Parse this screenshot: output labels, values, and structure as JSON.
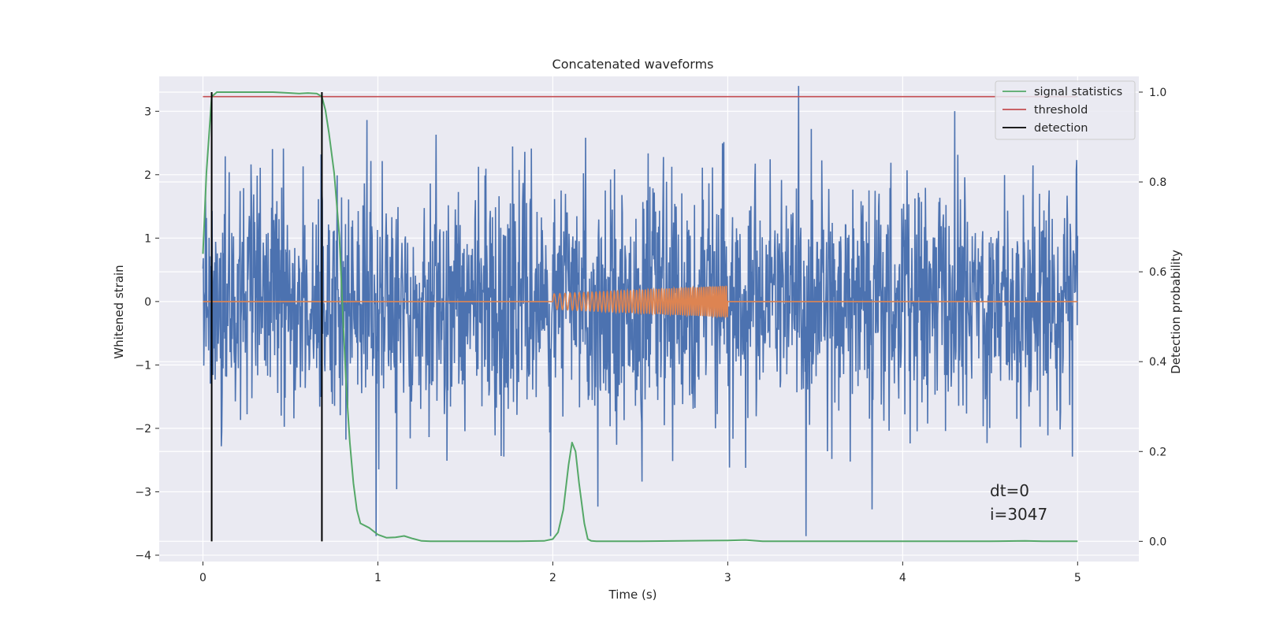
{
  "chart_data": {
    "type": "line",
    "title": "Concatenated waveforms",
    "xlabel": "Time (s)",
    "ylabel": "Whitened strain",
    "y2label": "Detection probability",
    "xlim": [
      -0.25,
      5.35
    ],
    "ylim": [
      -4.1,
      3.55
    ],
    "y2lim": [
      -0.045,
      1.035
    ],
    "x_ticks": [
      0,
      1,
      2,
      3,
      4,
      5
    ],
    "y_ticks": [
      -4,
      -3,
      -2,
      -1,
      0,
      1,
      2,
      3
    ],
    "y_tick_labels": [
      "−4",
      "−3",
      "−2",
      "−1",
      "0",
      "1",
      "2",
      "3"
    ],
    "y2_ticks": [
      0.0,
      0.2,
      0.4,
      0.6,
      0.8,
      1.0
    ],
    "y2_tick_labels": [
      "0.0",
      "0.2",
      "0.4",
      "0.6",
      "0.8",
      "1.0"
    ],
    "grid": true,
    "legend_position": "top-right",
    "colors": {
      "strain": "#4c72b0",
      "injection": "#dd8452",
      "signal_statistics": "#55a868",
      "threshold": "#c44e52",
      "detection": "#000000",
      "background": "#eaeaf2",
      "grid": "#ffffff"
    },
    "strain": {
      "axis": "left",
      "t_range": [
        0,
        5
      ],
      "typical_amplitude": [
        -1.8,
        1.8
      ],
      "max": 3.4,
      "min": -3.7
    },
    "injection": {
      "axis": "left",
      "t_range": [
        2.0,
        3.0
      ],
      "amplitude_start": 0.12,
      "amplitude_end": 0.25,
      "baseline": 0
    },
    "series": [
      {
        "name": "signal statistics",
        "axis": "right",
        "x": [
          0.0,
          0.02,
          0.05,
          0.08,
          0.1,
          0.2,
          0.3,
          0.4,
          0.5,
          0.55,
          0.6,
          0.65,
          0.68,
          0.7,
          0.72,
          0.75,
          0.78,
          0.8,
          0.82,
          0.84,
          0.86,
          0.88,
          0.9,
          0.95,
          1.0,
          1.05,
          1.1,
          1.15,
          1.2,
          1.25,
          1.3,
          1.5,
          1.8,
          1.95,
          2.0,
          2.03,
          2.06,
          2.09,
          2.11,
          2.13,
          2.15,
          2.18,
          2.2,
          2.22,
          2.25,
          2.3,
          2.5,
          3.0,
          3.1,
          3.2,
          3.5,
          4.0,
          4.5,
          4.7,
          4.8,
          5.0
        ],
        "y": [
          0.64,
          0.82,
          0.99,
          1.0,
          1.0,
          1.0,
          1.0,
          1.0,
          0.998,
          0.997,
          0.998,
          0.997,
          0.99,
          0.96,
          0.91,
          0.82,
          0.68,
          0.5,
          0.34,
          0.22,
          0.13,
          0.07,
          0.04,
          0.03,
          0.015,
          0.008,
          0.009,
          0.012,
          0.006,
          0.001,
          0.0,
          0.0,
          0.0,
          0.001,
          0.005,
          0.02,
          0.07,
          0.17,
          0.22,
          0.2,
          0.13,
          0.04,
          0.005,
          0.001,
          0.0,
          0.0,
          0.0,
          0.002,
          0.003,
          0.0,
          0.0,
          0.0,
          0.0,
          0.001,
          0.0,
          0.0
        ]
      },
      {
        "name": "threshold",
        "axis": "right",
        "x": [
          0,
          5
        ],
        "y": [
          0.99,
          0.99
        ]
      },
      {
        "name": "detection",
        "axis": "right",
        "x": [
          0.05,
          0.68
        ],
        "y_range": [
          0,
          1
        ]
      }
    ],
    "annotations": {
      "dt": "dt=0",
      "i": "i=3047"
    }
  }
}
